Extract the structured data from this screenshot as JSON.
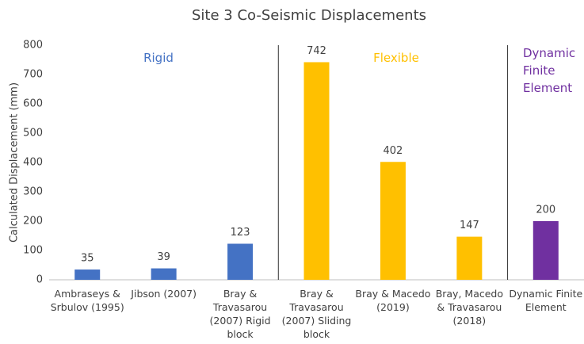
{
  "chart_data": {
    "type": "bar",
    "title": "Site 3 Co-Seismic Displacements",
    "y_label": "Calculated Displacement (mm)",
    "categories": [
      "Ambraseys & Srbulov (1995)",
      "Jibson (2007)",
      "Bray & Travasarou (2007) Rigid block",
      "Bray & Travasarou (2007) Sliding block",
      "Bray & Macedo (2019)",
      "Bray, Macedo & Travasarou (2018)",
      "Dynamic Finite Element"
    ],
    "values": [
      35,
      39,
      123,
      742,
      402,
      147,
      200
    ],
    "colors": [
      "#4472c4",
      "#4472c4",
      "#4472c4",
      "#ffc000",
      "#ffc000",
      "#ffc000",
      "#7030a0"
    ],
    "ylim": [
      0,
      800
    ],
    "yticks": [
      0,
      100,
      200,
      300,
      400,
      500,
      600,
      700,
      800
    ],
    "grid": false,
    "annotations": [
      {
        "text": "Rigid",
        "color": "#4472c4"
      },
      {
        "text": "Flexible",
        "color": "#ffc000"
      },
      {
        "text": "Dynamic Finite Element",
        "color": "#7030a0"
      }
    ]
  }
}
